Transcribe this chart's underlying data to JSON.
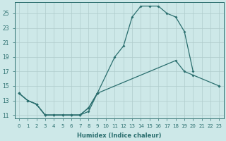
{
  "xlabel": "Humidex (Indice chaleur)",
  "background_color": "#cde8e8",
  "grid_color": "#b0cccc",
  "line_color": "#2a6e6e",
  "xlim": [
    -0.5,
    23.5
  ],
  "ylim": [
    10.5,
    26.5
  ],
  "xticks": [
    0,
    1,
    2,
    3,
    4,
    5,
    6,
    7,
    8,
    9,
    10,
    11,
    12,
    13,
    14,
    15,
    16,
    17,
    18,
    19,
    20,
    21,
    22,
    23
  ],
  "yticks": [
    11,
    13,
    15,
    17,
    19,
    21,
    23,
    25
  ],
  "curve1_x": [
    0,
    1,
    2,
    3,
    4,
    5,
    6,
    7,
    8,
    9,
    23
  ],
  "curve1_y": [
    14,
    13,
    12.5,
    11,
    11,
    11,
    11,
    11,
    11.5,
    14,
    15
  ],
  "curve2_x": [
    0,
    1,
    2,
    3,
    4,
    5,
    6,
    7,
    8,
    9,
    18,
    19,
    20,
    23
  ],
  "curve2_y": [
    14,
    13,
    12.5,
    11,
    11,
    11,
    11,
    11,
    12,
    14,
    18.5,
    17,
    16.5,
    15
  ],
  "curve3_x": [
    0,
    1,
    2,
    3,
    4,
    5,
    6,
    7,
    8,
    9,
    11,
    12,
    13,
    14,
    15,
    16,
    17,
    18,
    19,
    20
  ],
  "curve3_y": [
    14,
    13,
    12.5,
    11,
    11,
    11,
    11,
    11,
    12,
    14,
    19,
    20.5,
    24.5,
    26,
    26,
    26,
    25,
    24.5,
    22.5,
    17
  ]
}
